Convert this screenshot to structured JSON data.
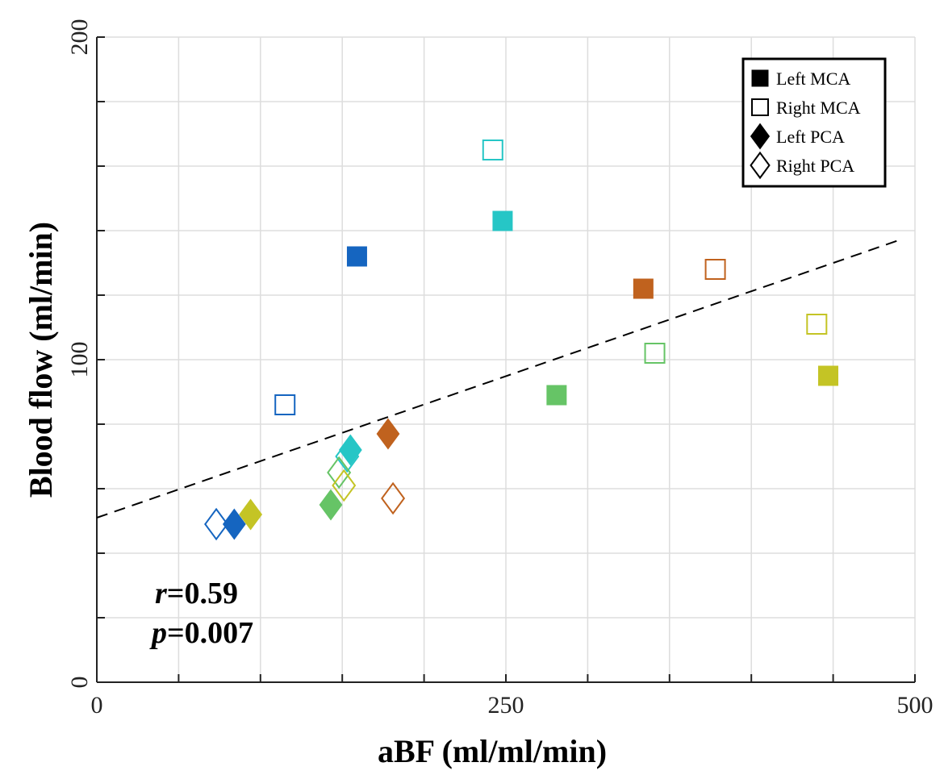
{
  "chart_data": {
    "type": "scatter",
    "xlabel": "aBF (ml/ml/min)",
    "ylabel": "Blood flow (ml/min)",
    "xlim": [
      0,
      500
    ],
    "ylim": [
      0,
      200
    ],
    "xticks": [
      0,
      50,
      100,
      150,
      200,
      250,
      300,
      350,
      400,
      450,
      500
    ],
    "xtick_labels": [
      "0",
      "",
      "",
      "",
      "",
      "250",
      "",
      "",
      "",
      "",
      "500"
    ],
    "yticks": [
      0,
      20,
      40,
      60,
      80,
      100,
      120,
      140,
      160,
      180,
      200
    ],
    "ytick_labels": [
      "0",
      "",
      "",
      "",
      "",
      "100",
      "",
      "",
      "",
      "",
      "200"
    ],
    "grid": true,
    "legend_position": "top-right",
    "series": [
      {
        "name": "Left MCA",
        "marker": "square",
        "filled": true,
        "points": [
          {
            "x": 159,
            "y": 132,
            "color": "#1565c0"
          },
          {
            "x": 248,
            "y": 143,
            "color": "#26c6c6"
          },
          {
            "x": 281,
            "y": 89,
            "color": "#66c466"
          },
          {
            "x": 334,
            "y": 122,
            "color": "#c0621e"
          },
          {
            "x": 447,
            "y": 95,
            "color": "#c4c425"
          }
        ]
      },
      {
        "name": "Right MCA",
        "marker": "square",
        "filled": false,
        "points": [
          {
            "x": 115,
            "y": 86,
            "color": "#1565c0"
          },
          {
            "x": 242,
            "y": 165,
            "color": "#26c6c6"
          },
          {
            "x": 341,
            "y": 102,
            "color": "#66c466"
          },
          {
            "x": 378,
            "y": 128,
            "color": "#c0621e"
          },
          {
            "x": 440,
            "y": 111,
            "color": "#c4c425"
          }
        ]
      },
      {
        "name": "Left PCA",
        "marker": "diamond",
        "filled": true,
        "points": [
          {
            "x": 84,
            "y": 49,
            "color": "#1565c0"
          },
          {
            "x": 155,
            "y": 72,
            "color": "#26c6c6"
          },
          {
            "x": 143,
            "y": 55,
            "color": "#66c466"
          },
          {
            "x": 178,
            "y": 77,
            "color": "#c0621e"
          },
          {
            "x": 94,
            "y": 52,
            "color": "#c4c425"
          }
        ]
      },
      {
        "name": "Right PCA",
        "marker": "diamond",
        "filled": false,
        "points": [
          {
            "x": 73,
            "y": 49,
            "color": "#1565c0"
          },
          {
            "x": 153,
            "y": 70,
            "color": "#26c6c6"
          },
          {
            "x": 148,
            "y": 65,
            "color": "#66c466"
          },
          {
            "x": 181,
            "y": 57,
            "color": "#c0621e"
          },
          {
            "x": 151,
            "y": 61,
            "color": "#c4c425"
          }
        ]
      }
    ],
    "fit_line": {
      "style": "dashed",
      "color": "#000000",
      "x": [
        0,
        490
      ],
      "y": [
        51,
        137
      ]
    },
    "annotations": {
      "r_label": "r",
      "r_value": "=0.59",
      "p_label": "p",
      "p_value": "=0.007"
    }
  }
}
